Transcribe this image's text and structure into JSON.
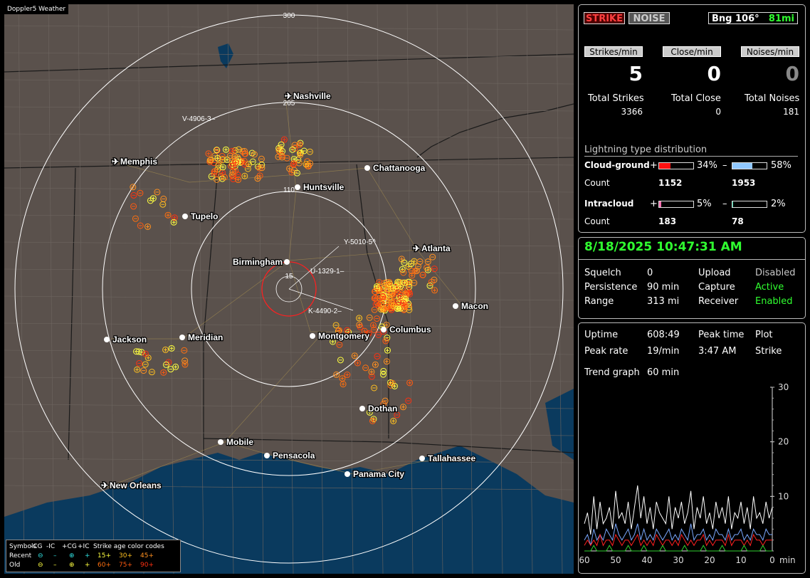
{
  "map": {
    "brand": "Doppler5 Weather",
    "range_labels": [
      "300",
      "205",
      "110",
      "15"
    ],
    "cities": [
      {
        "name": "Nashville",
        "airport": true
      },
      {
        "name": "Memphis",
        "airport": true
      },
      {
        "name": "Chattanooga",
        "airport": false
      },
      {
        "name": "Huntsville",
        "airport": false
      },
      {
        "name": "Tupelo",
        "airport": false
      },
      {
        "name": "Atlanta",
        "airport": true
      },
      {
        "name": "Birmingham",
        "airport": false
      },
      {
        "name": "Macon",
        "airport": false
      },
      {
        "name": "Columbus",
        "airport": false
      },
      {
        "name": "Montgomery",
        "airport": false
      },
      {
        "name": "Jackson",
        "airport": false
      },
      {
        "name": "Meridian",
        "airport": false
      },
      {
        "name": "Dothan",
        "airport": false
      },
      {
        "name": "Mobile",
        "airport": false
      },
      {
        "name": "Pensacola",
        "airport": false
      },
      {
        "name": "Tallahassee",
        "airport": false
      },
      {
        "name": "Panama City",
        "airport": false
      },
      {
        "name": "New Orleans",
        "airport": true
      }
    ],
    "markers": [
      "V-4906-3–",
      "Y-5010-5^",
      "U-1329-1–",
      "K-4490-2–"
    ],
    "legend": {
      "symbols_label": "Symbols",
      "cols": [
        "-CG",
        "-IC",
        "+CG",
        "+IC"
      ],
      "age_label": "Strike age color codes",
      "recent": "Recent",
      "old": "Old",
      "recent_ages": [
        "15+",
        "30+",
        "45+"
      ],
      "old_ages": [
        "60+",
        "75+",
        "90+"
      ],
      "age_colors": [
        "#ffff40",
        "#ffc020",
        "#ff9020",
        "#ff7010",
        "#ff5a10",
        "#ff3010"
      ]
    },
    "colors": {
      "ring": "#ffffff",
      "inner_ring": "#ff2020",
      "water": "#0a3a5e",
      "land": "#5a514c"
    }
  },
  "status": {
    "strike_badge": "STRIKE",
    "noise_badge": "NOISE",
    "bearing": "Bng 106°",
    "distance": "81mi",
    "rates": [
      {
        "label": "Strikes/min",
        "value": "5",
        "total_label": "Total Strikes",
        "total": "3366"
      },
      {
        "label": "Close/min",
        "value": "0",
        "total_label": "Total Close",
        "total": "0"
      },
      {
        "label": "Noises/min",
        "value": "0",
        "total_label": "Total Noises",
        "total": "181"
      }
    ],
    "dist_title": "Lightning type distribution",
    "cloud_ground": {
      "label": "Cloud-ground",
      "pos_pct": "34%",
      "neg_pct": "58%",
      "pos_count": "1152",
      "neg_count": "1953",
      "pos_frac": 0.34,
      "neg_frac": 0.58
    },
    "intracloud": {
      "label": "Intracloud",
      "pos_pct": "5%",
      "neg_pct": "2%",
      "pos_count": "183",
      "neg_count": "78",
      "pos_frac": 0.05,
      "neg_frac": 0.02
    },
    "count_label": "Count",
    "plus": "+",
    "minus": "–"
  },
  "settings": {
    "datetime": "8/18/2025 10:47:31 AM",
    "rows": [
      [
        "Squelch",
        "0",
        "Upload",
        "Disabled"
      ],
      [
        "Persistence",
        "90 min",
        "Capture",
        "Active"
      ],
      [
        "Range",
        "313 mi",
        "Receiver",
        "Enabled"
      ]
    ],
    "value_colors": [
      "#c8c8c8",
      "#30ff30",
      "#30ff30"
    ]
  },
  "trend": {
    "uptime_label": "Uptime",
    "uptime": "608:49",
    "peak_time_label": "Peak time",
    "plot_label": "Plot",
    "peak_rate_label": "Peak rate",
    "peak_rate": "19/min",
    "peak_time": "3:47 AM",
    "plot": "Strike",
    "graph_label": "Trend graph",
    "graph_span": "60 min",
    "chart_data": {
      "type": "line",
      "x_ticks": [
        "60",
        "50",
        "40",
        "30",
        "20",
        "10",
        "0"
      ],
      "x_unit": "min",
      "y_ticks": [
        "30",
        "20",
        "10"
      ],
      "ylim": [
        0,
        30
      ],
      "series": [
        {
          "color": "#ffffff",
          "values": [
            5,
            7,
            3,
            10,
            4,
            9,
            5,
            6,
            8,
            4,
            11,
            6,
            7,
            5,
            9,
            4,
            8,
            12,
            6,
            10,
            5,
            8,
            4,
            9,
            7,
            6,
            5,
            10,
            4,
            8,
            6,
            9,
            5,
            7,
            11,
            4,
            8,
            6,
            10,
            5,
            7,
            4,
            9,
            6,
            8,
            5,
            10,
            4,
            7,
            6,
            9,
            5,
            8,
            4,
            10,
            6,
            7,
            5,
            9,
            6,
            8
          ]
        },
        {
          "color": "#7aa8ff",
          "values": [
            2,
            3,
            1,
            4,
            2,
            3,
            2,
            4,
            3,
            2,
            5,
            3,
            2,
            3,
            4,
            2,
            3,
            5,
            2,
            4,
            2,
            3,
            2,
            4,
            3,
            2,
            3,
            4,
            2,
            3,
            2,
            4,
            3,
            2,
            5,
            2,
            3,
            3,
            4,
            2,
            3,
            2,
            4,
            3,
            3,
            2,
            4,
            2,
            3,
            3,
            4,
            2,
            3,
            2,
            4,
            3,
            3,
            2,
            4,
            3,
            3
          ]
        },
        {
          "color": "#ff2020",
          "values": [
            1,
            2,
            1,
            2,
            1,
            3,
            1,
            2,
            2,
            1,
            3,
            2,
            1,
            2,
            2,
            1,
            2,
            3,
            1,
            2,
            1,
            2,
            1,
            3,
            2,
            1,
            2,
            2,
            1,
            2,
            1,
            3,
            2,
            1,
            2,
            1,
            2,
            2,
            3,
            1,
            2,
            1,
            2,
            2,
            2,
            1,
            3,
            1,
            2,
            2,
            2,
            1,
            2,
            1,
            3,
            2,
            2,
            1,
            2,
            2,
            2
          ]
        },
        {
          "color": "#30d030",
          "values": [
            0,
            0,
            0,
            1,
            0,
            0,
            0,
            0,
            1,
            0,
            0,
            0,
            0,
            0,
            1,
            0,
            0,
            0,
            0,
            1,
            0,
            0,
            0,
            0,
            0,
            1,
            0,
            0,
            0,
            0,
            0,
            0,
            1,
            0,
            0,
            0,
            0,
            0,
            1,
            0,
            0,
            0,
            0,
            0,
            1,
            0,
            0,
            0,
            0,
            0,
            0,
            1,
            0,
            0,
            0,
            0,
            0,
            1,
            0,
            0,
            0
          ]
        }
      ]
    }
  }
}
